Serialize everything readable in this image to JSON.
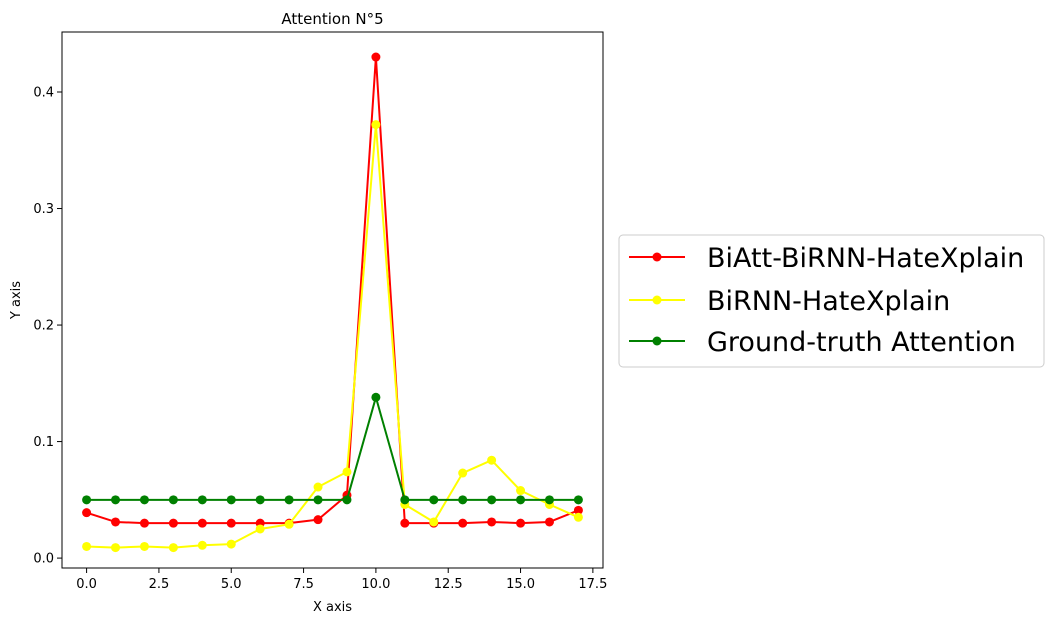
{
  "chart_data": {
    "type": "line",
    "title": "Attention N°5",
    "xlabel": "X axis",
    "ylabel": "Y axis",
    "xlim": [
      -0.85,
      17.85
    ],
    "ylim": [
      -0.0085,
      0.4515
    ],
    "xticks": [
      0.0,
      2.5,
      5.0,
      7.5,
      10.0,
      12.5,
      15.0,
      17.5
    ],
    "xtick_labels": [
      "0.0",
      "2.5",
      "5.0",
      "7.5",
      "10.0",
      "12.5",
      "15.0",
      "17.5"
    ],
    "yticks": [
      0.0,
      0.1,
      0.2,
      0.3,
      0.4
    ],
    "ytick_labels": [
      "0.0",
      "0.1",
      "0.2",
      "0.3",
      "0.4"
    ],
    "grid": false,
    "legend_placement": "outside-right",
    "x": [
      0,
      1,
      2,
      3,
      4,
      5,
      6,
      7,
      8,
      9,
      10,
      11,
      12,
      13,
      14,
      15,
      16,
      17
    ],
    "series": [
      {
        "name": "BiAtt-BiRNN-HateXplain",
        "color": "#ff0000",
        "values": [
          0.039,
          0.031,
          0.03,
          0.03,
          0.03,
          0.03,
          0.03,
          0.03,
          0.033,
          0.054,
          0.43,
          0.03,
          0.03,
          0.03,
          0.031,
          0.03,
          0.031,
          0.041
        ]
      },
      {
        "name": "BiRNN-HateXplain",
        "color": "#ffff00",
        "values": [
          0.01,
          0.009,
          0.01,
          0.009,
          0.011,
          0.012,
          0.025,
          0.029,
          0.061,
          0.074,
          0.372,
          0.046,
          0.031,
          0.073,
          0.084,
          0.058,
          0.046,
          0.035
        ]
      },
      {
        "name": "Ground-truth Attention",
        "color": "#008000",
        "values": [
          0.05,
          0.05,
          0.05,
          0.05,
          0.05,
          0.05,
          0.05,
          0.05,
          0.05,
          0.05,
          0.138,
          0.05,
          0.05,
          0.05,
          0.05,
          0.05,
          0.05,
          0.05
        ]
      }
    ]
  }
}
